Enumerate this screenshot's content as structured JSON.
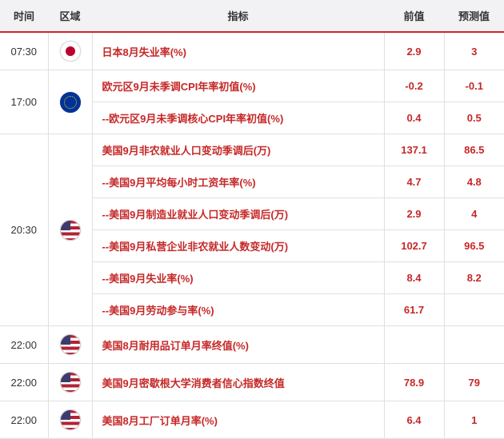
{
  "headers": {
    "time": "时间",
    "region": "区域",
    "indicator": "指标",
    "prev": "前值",
    "forecast": "预测值"
  },
  "groups": [
    {
      "time": "07:30",
      "flag": "jp",
      "rows": [
        {
          "indicator": "日本8月失业率(%)",
          "prev": "2.9",
          "forecast": "3"
        }
      ]
    },
    {
      "time": "17:00",
      "flag": "eu",
      "rows": [
        {
          "indicator": "欧元区9月未季调CPI年率初值(%)",
          "prev": "-0.2",
          "forecast": "-0.1"
        },
        {
          "indicator": "--欧元区9月未季调核心CPI年率初值(%)",
          "prev": "0.4",
          "forecast": "0.5"
        }
      ]
    },
    {
      "time": "20:30",
      "flag": "us",
      "rows": [
        {
          "indicator": "美国9月非农就业人口变动季调后(万)",
          "prev": "137.1",
          "forecast": "86.5"
        },
        {
          "indicator": "--美国9月平均每小时工资年率(%)",
          "prev": "4.7",
          "forecast": "4.8"
        },
        {
          "indicator": "--美国9月制造业就业人口变动季调后(万)",
          "prev": "2.9",
          "forecast": "4"
        },
        {
          "indicator": "--美国9月私营企业非农就业人数变动(万)",
          "prev": "102.7",
          "forecast": "96.5"
        },
        {
          "indicator": "--美国9月失业率(%)",
          "prev": "8.4",
          "forecast": "8.2"
        },
        {
          "indicator": "--美国9月劳动参与率(%)",
          "prev": "61.7",
          "forecast": ""
        }
      ]
    },
    {
      "time": "22:00",
      "flag": "us",
      "rows": [
        {
          "indicator": "美国8月耐用品订单月率终值(%)",
          "prev": "",
          "forecast": ""
        }
      ]
    },
    {
      "time": "22:00",
      "flag": "us",
      "rows": [
        {
          "indicator": "美国9月密歇根大学消费者信心指数终值",
          "prev": "78.9",
          "forecast": "79"
        }
      ]
    },
    {
      "time": "22:00",
      "flag": "us",
      "rows": [
        {
          "indicator": "美国8月工厂订单月率(%)",
          "prev": "6.4",
          "forecast": "1"
        }
      ]
    }
  ]
}
